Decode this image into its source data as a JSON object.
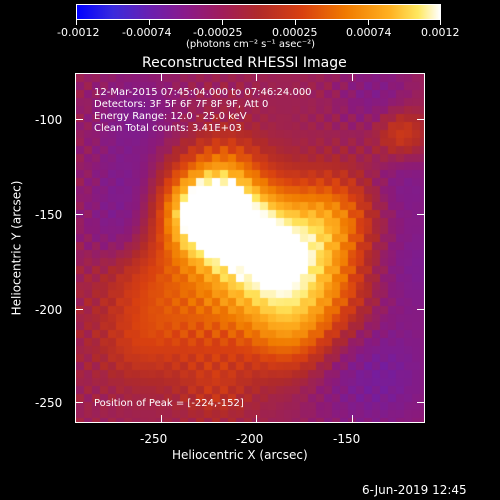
{
  "colorbar": {
    "tick_labels": [
      "-0.0012",
      "-0.00074",
      "-0.00025",
      "0.00025",
      "0.00074",
      "0.0012"
    ],
    "units": "(photons cm⁻² s⁻¹ asec⁻²)"
  },
  "plot": {
    "title": "Reconstructed RHESSI Image",
    "xlabel": "Heliocentric X (arcsec)",
    "ylabel": "Heliocentric Y (arcsec)",
    "x_ticks": [
      "-250",
      "-200",
      "-150"
    ],
    "y_ticks": [
      "-100",
      "-150",
      "-200",
      "-250"
    ]
  },
  "annotation": {
    "time_range": "12-Mar-2015 07:45:04.000 to 07:46:24.000",
    "detectors": "Detectors: 3F 5F 6F 7F 8F 9F, Att 0",
    "energy": "Energy Range: 12.0 - 25.0 keV",
    "clean": "Clean    Total counts: 3.41E+03",
    "peak": "Position of Peak = [-224,-152]"
  },
  "footer": {
    "date": "6-Jun-2019 12:45"
  },
  "chart_data": {
    "type": "heatmap",
    "title": "Reconstructed RHESSI Image",
    "xlabel": "Heliocentric X (arcsec)",
    "ylabel": "Heliocentric Y (arcsec)",
    "xlim": [
      -295,
      -112
    ],
    "ylim": [
      -265,
      -82
    ],
    "peak": [
      -224,
      -152
    ],
    "color_range": [
      -0.0012,
      0.0012
    ],
    "colorscale": [
      "#0000ff",
      "#6a1fb0",
      "#a01c5a",
      "#d84010",
      "#f07a00",
      "#ffe860",
      "#ffffff"
    ]
  }
}
